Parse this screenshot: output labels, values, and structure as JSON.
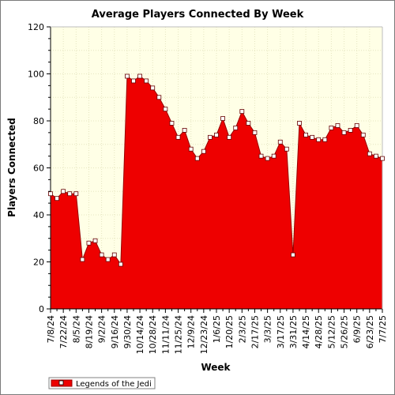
{
  "colors": {
    "series_fill": "#ee0000",
    "series_line": "#990000",
    "plot_bg": "#ffffe6",
    "grid": "#e6e6c0"
  },
  "chart_data": {
    "type": "area",
    "title": "Average Players Connected By Week",
    "xlabel": "Week",
    "ylabel": "Players Connected",
    "ylim": [
      0,
      120
    ],
    "yticks": [
      0,
      20,
      40,
      60,
      80,
      100,
      120
    ],
    "grid": true,
    "legend_position": "bottom-left",
    "x": [
      "7/8/24",
      "7/15/24",
      "7/22/24",
      "7/29/24",
      "8/5/24",
      "8/12/24",
      "8/19/24",
      "8/26/24",
      "9/2/24",
      "9/9/24",
      "9/16/24",
      "9/23/24",
      "9/30/24",
      "10/7/24",
      "10/14/24",
      "10/21/24",
      "10/28/24",
      "11/4/24",
      "11/11/24",
      "11/18/24",
      "11/25/24",
      "12/2/24",
      "12/9/24",
      "12/16/24",
      "12/23/24",
      "12/30/24",
      "1/6/25",
      "1/13/25",
      "1/20/25",
      "1/27/25",
      "2/3/25",
      "2/10/25",
      "2/17/25",
      "2/24/25",
      "3/3/25",
      "3/10/25",
      "3/17/25",
      "3/24/25",
      "3/31/25",
      "4/7/25",
      "4/14/25",
      "4/21/25",
      "4/28/25",
      "5/5/25",
      "5/12/25",
      "5/19/25",
      "5/26/25",
      "6/2/25",
      "6/9/25",
      "6/16/25",
      "6/23/25",
      "6/30/25",
      "7/7/25"
    ],
    "xticks": [
      "7/8/24",
      "7/22/24",
      "8/5/24",
      "8/19/24",
      "9/2/24",
      "9/16/24",
      "9/30/24",
      "10/14/24",
      "10/28/24",
      "11/11/24",
      "11/25/24",
      "12/9/24",
      "12/23/24",
      "1/6/25",
      "1/20/25",
      "2/3/25",
      "2/17/25",
      "3/3/25",
      "3/17/25",
      "3/31/25",
      "4/14/25",
      "4/28/25",
      "5/12/25",
      "5/26/25",
      "6/9/25",
      "6/23/25",
      "7/7/25"
    ],
    "series": [
      {
        "name": "Legends of the Jedi",
        "values": [
          49,
          47,
          50,
          49,
          49,
          21,
          28,
          29,
          23,
          21,
          23,
          19,
          99,
          97,
          99,
          97,
          94,
          90,
          85,
          79,
          73,
          76,
          68,
          64,
          67,
          73,
          74,
          81,
          73,
          77,
          84,
          79,
          75,
          65,
          64,
          65,
          71,
          68,
          23,
          79,
          74,
          73,
          72,
          72,
          77,
          78,
          75,
          76,
          78,
          74,
          66,
          65,
          64
        ]
      }
    ]
  }
}
